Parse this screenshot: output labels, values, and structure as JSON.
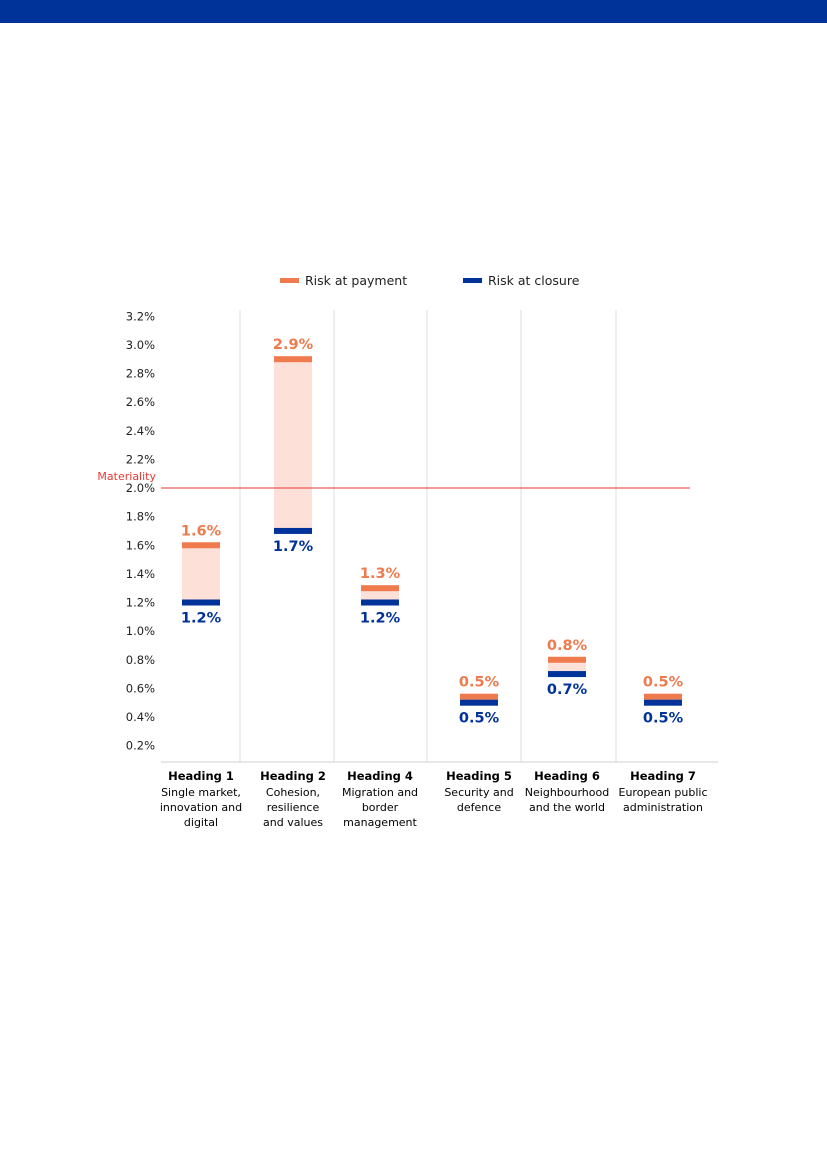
{
  "chart_data": {
    "type": "bar",
    "title": "",
    "xlabel": "",
    "ylabel": "",
    "ylim": [
      0.1,
      3.2
    ],
    "y_ticks": [
      "0.2%",
      "0.4%",
      "0.6%",
      "0.8%",
      "1.0%",
      "1.2%",
      "1.4%",
      "1.6%",
      "1.8%",
      "2.0%",
      "2.2%",
      "2.4%",
      "2.6%",
      "2.8%",
      "3.0%",
      "3.2%"
    ],
    "legend": {
      "placement": "top-center",
      "entries": [
        "Risk at payment",
        "Risk at closure"
      ]
    },
    "categories": [
      {
        "title": "Heading 1",
        "sub": [
          "Single market,",
          "innovation and",
          "digital"
        ]
      },
      {
        "title": "Heading 2",
        "sub": [
          "Cohesion,",
          "resilience",
          "and values"
        ]
      },
      {
        "title": "Heading 4",
        "sub": [
          "Migration and",
          "border",
          "management"
        ]
      },
      {
        "title": "Heading 5",
        "sub": [
          "Security and",
          "defence"
        ]
      },
      {
        "title": "Heading 6",
        "sub": [
          "Neighbourhood",
          "and the world"
        ]
      },
      {
        "title": "Heading 7",
        "sub": [
          "European public",
          "administration"
        ]
      }
    ],
    "series": [
      {
        "name": "Risk at payment",
        "color": "#ef7a4e",
        "values": [
          1.6,
          2.9,
          1.3,
          0.5,
          0.8,
          0.5
        ],
        "labels": [
          "1.6%",
          "2.9%",
          "1.3%",
          "0.5%",
          "0.8%",
          "0.5%"
        ]
      },
      {
        "name": "Risk at closure",
        "color": "#003399",
        "values": [
          1.2,
          1.7,
          1.2,
          0.5,
          0.7,
          0.5
        ],
        "labels": [
          "1.2%",
          "1.7%",
          "1.2%",
          "0.5%",
          "0.7%",
          "0.5%"
        ]
      }
    ],
    "range_fill_color": "#fde1d8",
    "materiality": {
      "label": "Materiality",
      "value": 2.0,
      "color": "#e53935"
    },
    "grid": false
  }
}
